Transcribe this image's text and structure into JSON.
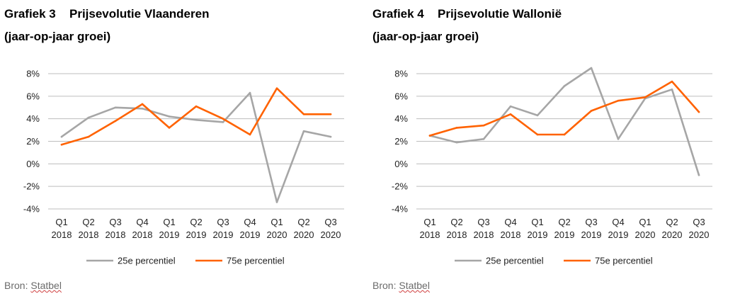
{
  "charts": [
    {
      "title_num": "Grafiek 3",
      "title_text": "Prijsevolutie Vlaanderen",
      "subtitle": "(jaar-op-jaar groei)",
      "source_prefix": "Bron:",
      "source_name": "Statbel"
    },
    {
      "title_num": "Grafiek 4",
      "title_text": "Prijsevolutie Wallonië",
      "subtitle": "(jaar-op-jaar groei)",
      "source_prefix": "Bron:",
      "source_name": "Statbel"
    }
  ],
  "chart_data": [
    {
      "type": "line",
      "title": "Prijsevolutie Vlaanderen",
      "subtitle": "(jaar-op-jaar groei)",
      "categories": [
        [
          "Q1",
          "2018"
        ],
        [
          "Q2",
          "2018"
        ],
        [
          "Q3",
          "2018"
        ],
        [
          "Q4",
          "2018"
        ],
        [
          "Q1",
          "2019"
        ],
        [
          "Q2",
          "2019"
        ],
        [
          "Q3",
          "2019"
        ],
        [
          "Q4",
          "2019"
        ],
        [
          "Q1",
          "2020"
        ],
        [
          "Q2",
          "2020"
        ],
        [
          "Q3",
          "2020"
        ]
      ],
      "ylim": [
        -4,
        8
      ],
      "yticks": [
        -4,
        -2,
        0,
        2,
        4,
        6,
        8
      ],
      "ytick_labels": [
        "-4%",
        "-2%",
        "0%",
        "2%",
        "4%",
        "6%",
        "8%"
      ],
      "grid": true,
      "legend_position": "bottom",
      "series": [
        {
          "name": "25e percentiel",
          "color": "#a6a6a6",
          "values": [
            2.4,
            4.1,
            5.0,
            4.9,
            4.2,
            3.9,
            3.7,
            6.3,
            -3.4,
            2.9,
            2.4
          ]
        },
        {
          "name": "75e percentiel",
          "color": "#ff6200",
          "values": [
            1.7,
            2.4,
            3.8,
            5.3,
            3.2,
            5.1,
            4.0,
            2.6,
            6.7,
            4.4,
            4.4
          ]
        }
      ]
    },
    {
      "type": "line",
      "title": "Prijsevolutie Wallonië",
      "subtitle": "(jaar-op-jaar groei)",
      "categories": [
        [
          "Q1",
          "2018"
        ],
        [
          "Q2",
          "2018"
        ],
        [
          "Q3",
          "2018"
        ],
        [
          "Q4",
          "2018"
        ],
        [
          "Q1",
          "2019"
        ],
        [
          "Q2",
          "2019"
        ],
        [
          "Q3",
          "2019"
        ],
        [
          "Q4",
          "2019"
        ],
        [
          "Q1",
          "2020"
        ],
        [
          "Q2",
          "2020"
        ],
        [
          "Q3",
          "2020"
        ]
      ],
      "ylim": [
        -4,
        8
      ],
      "yticks": [
        -4,
        -2,
        0,
        2,
        4,
        6,
        8
      ],
      "ytick_labels": [
        "-4%",
        "-2%",
        "0%",
        "2%",
        "4%",
        "6%",
        "8%"
      ],
      "grid": true,
      "legend_position": "bottom",
      "series": [
        {
          "name": "25e percentiel",
          "color": "#a6a6a6",
          "values": [
            2.5,
            1.9,
            2.2,
            5.1,
            4.3,
            6.9,
            8.5,
            2.2,
            5.8,
            6.6,
            -1.0
          ]
        },
        {
          "name": "75e percentiel",
          "color": "#ff6200",
          "values": [
            2.5,
            3.2,
            3.4,
            4.4,
            2.6,
            2.6,
            4.7,
            5.6,
            5.9,
            7.3,
            4.6
          ]
        }
      ]
    }
  ]
}
